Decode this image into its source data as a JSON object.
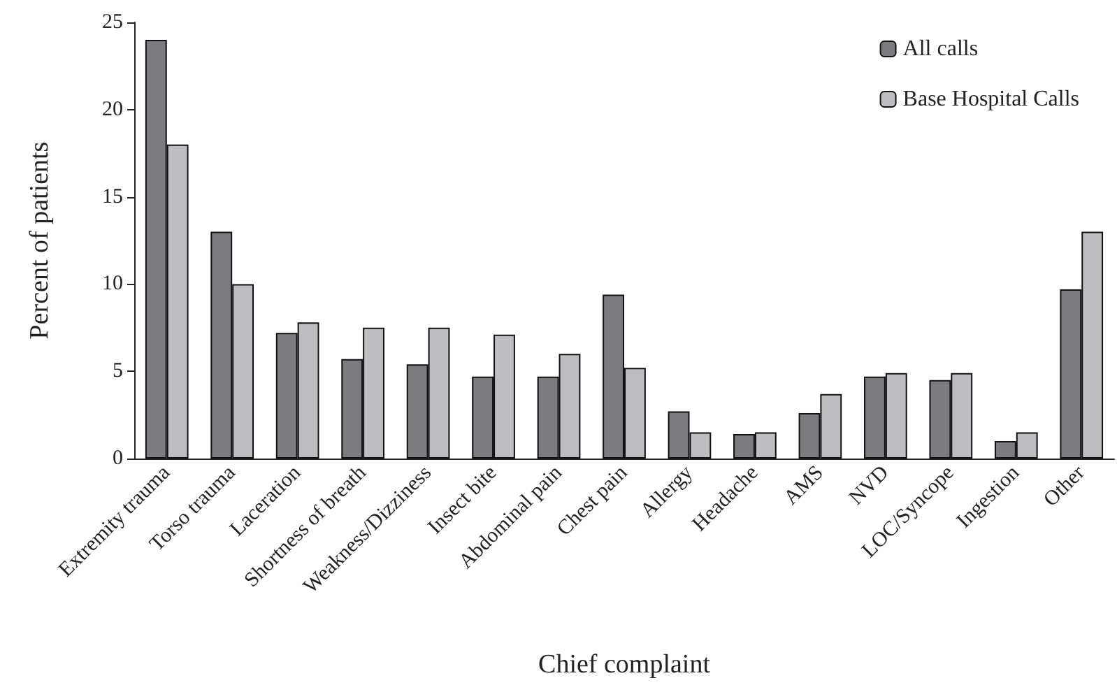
{
  "chart_data": {
    "type": "bar",
    "xlabel": "Chief complaint",
    "ylabel": "Percent of patients",
    "categories": [
      "Extremity trauma",
      "Torso trauma",
      "Laceration",
      "Shortness of breath",
      "Weakness/Dizziness",
      "Insect bite",
      "Abdominal pain",
      "Chest pain",
      "Allergy",
      "Headache",
      "AMS",
      "NVD",
      "LOC/Syncope",
      "Ingestion",
      "Other"
    ],
    "series": [
      {
        "name": "All calls",
        "color": "#7b7c80",
        "values": [
          24,
          13,
          7.2,
          5.7,
          5.4,
          4.7,
          4.7,
          9.4,
          2.7,
          1.4,
          2.6,
          4.7,
          4.5,
          1.0,
          9.7
        ]
      },
      {
        "name": "Base Hospital Calls",
        "color": "#bdbec2",
        "values": [
          18,
          10,
          7.8,
          7.5,
          7.5,
          7.1,
          6.0,
          5.2,
          1.5,
          1.5,
          3.7,
          4.9,
          4.9,
          1.5,
          13.0
        ]
      }
    ],
    "ylim": [
      0,
      25
    ],
    "yticks": [
      0,
      5,
      10,
      15,
      20,
      25
    ],
    "grid": false,
    "legend": "top right"
  }
}
